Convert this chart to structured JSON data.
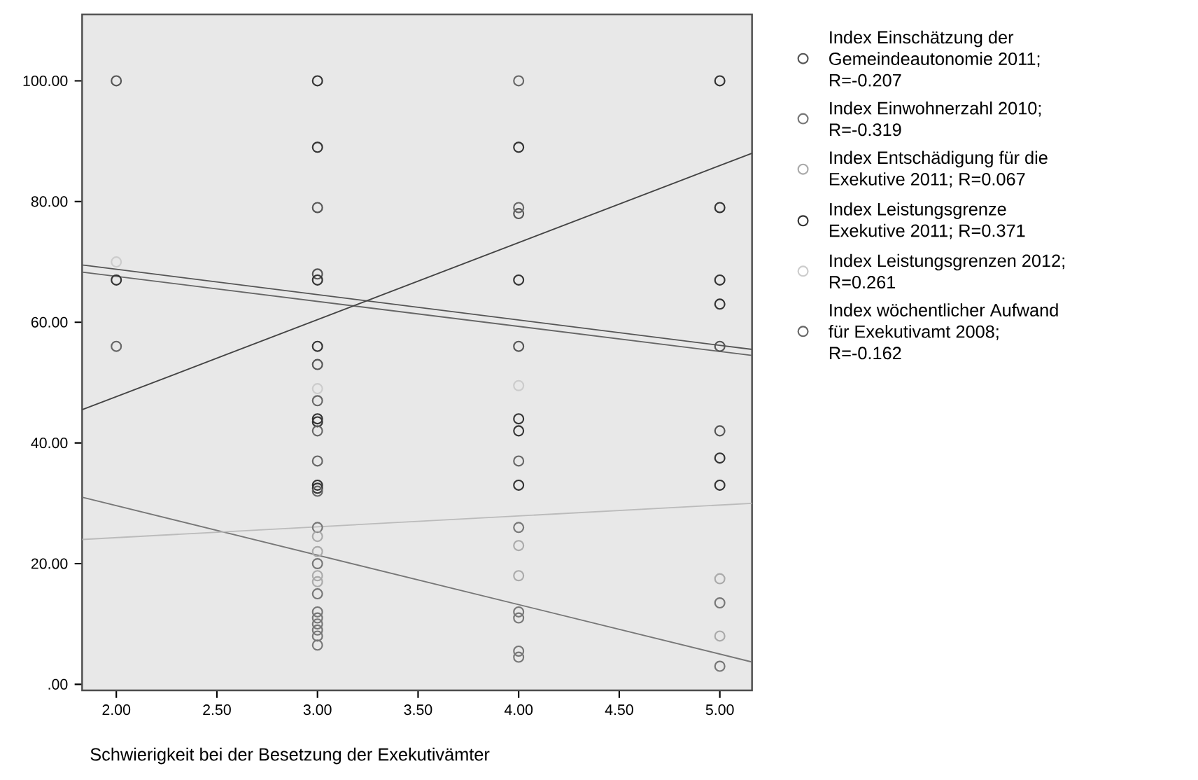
{
  "chart_data": {
    "type": "scatter",
    "xlabel": "Schwierigkeit bei der Besetzung der Exekutivämter",
    "xlim": [
      1.83,
      5.16
    ],
    "ylim": [
      -1,
      111
    ],
    "xticks": [
      {
        "value": 2,
        "label": "2.00"
      },
      {
        "value": 2.5,
        "label": "2.50"
      },
      {
        "value": 3,
        "label": "3.00"
      },
      {
        "value": 3.5,
        "label": "3.50"
      },
      {
        "value": 4,
        "label": "4.00"
      },
      {
        "value": 4.5,
        "label": "4.50"
      },
      {
        "value": 5,
        "label": "5.00"
      }
    ],
    "yticks": [
      {
        "value": 0,
        "label": ".00"
      },
      {
        "value": 20,
        "label": "20.00"
      },
      {
        "value": 40,
        "label": "40.00"
      },
      {
        "value": 60,
        "label": "60.00"
      },
      {
        "value": 80,
        "label": "80.00"
      },
      {
        "value": 100,
        "label": "100.00"
      }
    ],
    "marker": "circle",
    "legend": "right",
    "series": [
      {
        "name": "Index Einschätzung der Gemeindeautonomie 2011; R=-0.207",
        "color": "#555555",
        "x": [
          2,
          3,
          3,
          3,
          4,
          4,
          5,
          5
        ],
        "values": [
          100,
          79,
          68,
          53,
          78,
          56,
          56,
          42
        ]
      },
      {
        "name": "Index Einwohnerzahl 2010; R=-0.319",
        "color": "#777777",
        "x": [
          3,
          3,
          3,
          3,
          3,
          3,
          3,
          3,
          3,
          4,
          4,
          4,
          4,
          4,
          5,
          5
        ],
        "values": [
          26,
          20,
          15,
          12,
          11,
          10,
          9,
          8,
          6.5,
          26,
          12,
          11,
          5.5,
          4.5,
          13.5,
          3
        ]
      },
      {
        "name": "Index Entschädigung für die Exekutive 2011; R=0.067",
        "color": "#aaaaaa",
        "x": [
          3,
          3,
          3,
          3,
          4,
          4,
          5,
          5
        ],
        "values": [
          24.5,
          22,
          18,
          17,
          23,
          18,
          17.5,
          8
        ]
      },
      {
        "name": "Index Leistungsgrenze Exekutive 2011; R=0.371",
        "color": "#333333",
        "x": [
          2,
          3,
          3,
          3,
          3,
          3,
          3,
          3,
          3,
          4,
          4,
          4,
          4,
          4,
          5,
          5,
          5,
          5,
          5,
          5
        ],
        "values": [
          67,
          100,
          89,
          67,
          56,
          44,
          43.5,
          33,
          32.5,
          89,
          67,
          44,
          42,
          33,
          100,
          79,
          67,
          63,
          37.5,
          33
        ]
      },
      {
        "name": "Index Leistungsgrenzen 2012; R=0.261",
        "color": "#cccccc",
        "x": [
          2,
          3,
          4
        ],
        "values": [
          70,
          49,
          49.5
        ]
      },
      {
        "name": "Index wöchentlicher Aufwand für Exekutivamt 2008; R=-0.162",
        "color": "#666666",
        "x": [
          2,
          3,
          3,
          3,
          3,
          4,
          4,
          4
        ],
        "values": [
          56,
          47,
          42,
          37,
          32,
          100,
          79,
          37
        ]
      },
      {
        "type": "line",
        "marker": "none",
        "color": "#555555",
        "x": [
          1.83,
          5.16
        ],
        "values": [
          69.5,
          55.5
        ]
      },
      {
        "type": "line",
        "marker": "none",
        "color": "#666666",
        "x": [
          1.83,
          5.16
        ],
        "values": [
          68.3,
          54.5
        ]
      },
      {
        "type": "line",
        "marker": "none",
        "color": "#444444",
        "x": [
          1.83,
          5.16
        ],
        "values": [
          45.5,
          88
        ]
      },
      {
        "type": "line",
        "marker": "none",
        "color": "#777777",
        "x": [
          1.83,
          5.16
        ],
        "values": [
          31,
          3.7
        ]
      },
      {
        "type": "line",
        "marker": "none",
        "color": "#bbbbbb",
        "x": [
          1.83,
          5.16
        ],
        "values": [
          24,
          30
        ]
      }
    ]
  }
}
